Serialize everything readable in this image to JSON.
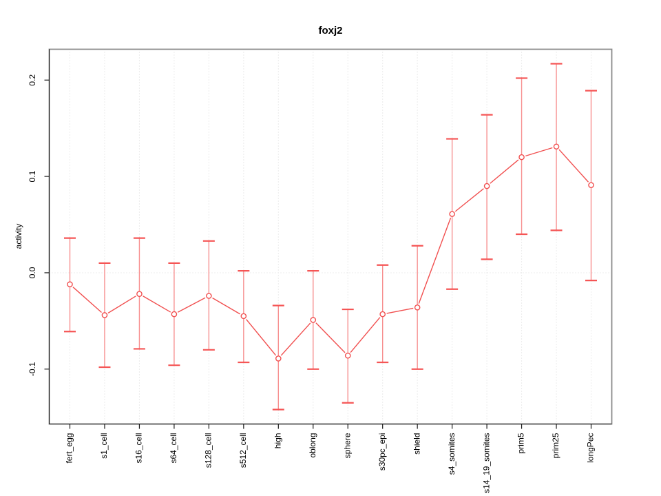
{
  "chart_data": {
    "type": "line",
    "title": "foxj2",
    "xlabel": "",
    "ylabel": "activity",
    "categories": [
      "fert_egg",
      "s1_cell",
      "s16_cell",
      "s64_cell",
      "s128_cell",
      "s512_cell",
      "high",
      "oblong",
      "sphere",
      "s30pc_epi",
      "shield",
      "s4_somites",
      "s14_19_somites",
      "prim5",
      "prim25",
      "longPec"
    ],
    "series": [
      {
        "name": "activity",
        "values": [
          -0.012,
          -0.044,
          -0.022,
          -0.043,
          -0.024,
          -0.045,
          -0.089,
          -0.049,
          -0.086,
          -0.043,
          -0.036,
          0.061,
          0.09,
          0.12,
          0.131,
          0.091
        ],
        "ci_low": [
          -0.061,
          -0.098,
          -0.079,
          -0.096,
          -0.08,
          -0.093,
          -0.142,
          -0.1,
          -0.135,
          -0.093,
          -0.1,
          -0.017,
          0.014,
          0.04,
          0.044,
          -0.008
        ],
        "ci_high": [
          0.036,
          0.01,
          0.036,
          0.01,
          0.033,
          0.002,
          -0.034,
          0.002,
          -0.038,
          0.008,
          0.028,
          0.139,
          0.164,
          0.202,
          0.217,
          0.189
        ]
      }
    ],
    "yticks": [
      -0.1,
      0.0,
      0.1,
      0.2
    ],
    "ytick_labels": [
      "-0.1",
      "0.0",
      "0.1",
      "0.2"
    ],
    "ylim": [
      -0.157,
      0.232
    ],
    "grid": {
      "vertical_per_category": true,
      "horizontal_at_zero": true
    },
    "legend": "none",
    "point_marker": "open-circle",
    "colors": {
      "point_line": "#f14f4f",
      "error_bar": "#f79090",
      "error_cap": "#f55555",
      "grid": "#d9d9d9",
      "box": "#8a8a8a",
      "axis": "#1a1a1a",
      "text": "#000000",
      "background": "#ffffff"
    }
  }
}
